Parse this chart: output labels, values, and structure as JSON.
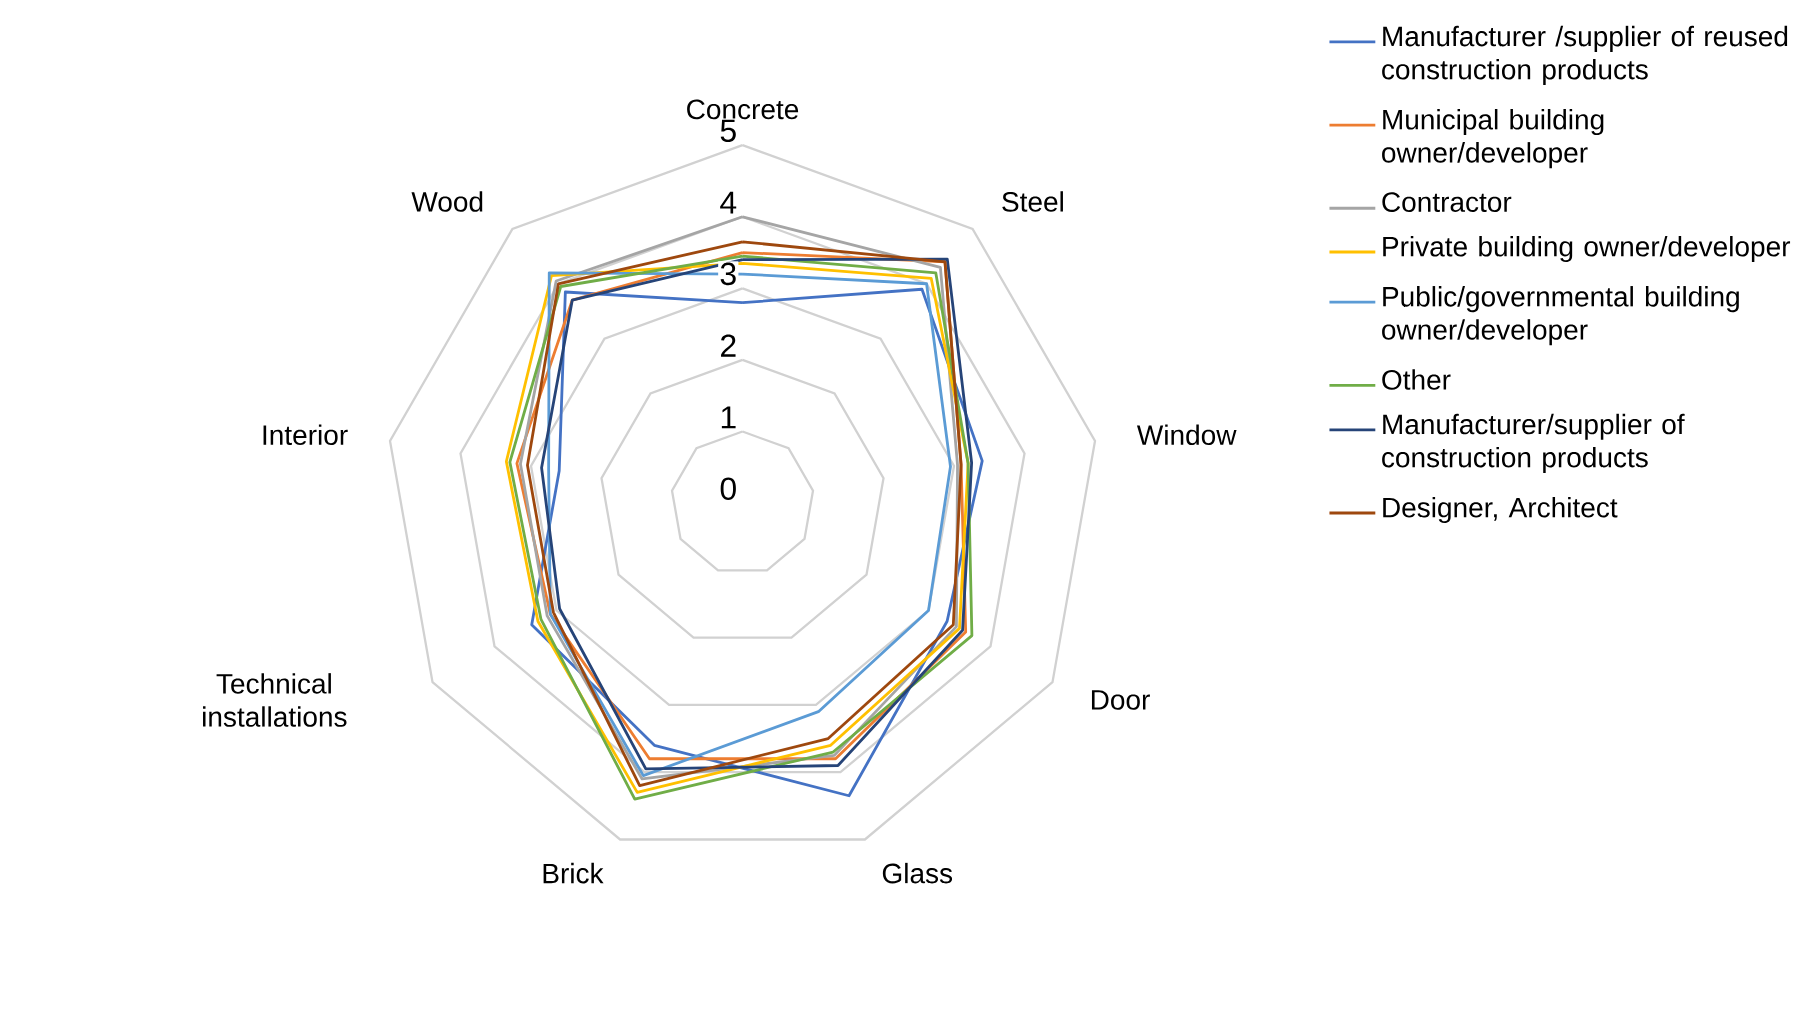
{
  "chart_data": {
    "type": "radar",
    "categories": [
      "Concrete",
      "Steel",
      "Window",
      "Door",
      "Glass",
      "Brick",
      "Technical installations",
      "Interior",
      "Wood"
    ],
    "ylim": [
      0,
      5
    ],
    "yticks": [
      0,
      1,
      2,
      3,
      4,
      5
    ],
    "grid": true,
    "legend": "right",
    "series": [
      {
        "name": "Manufacturer /supplier of reused construction products",
        "color": "#4472c4",
        "values": [
          2.8,
          3.9,
          3.4,
          3.3,
          4.35,
          3.6,
          3.4,
          2.6,
          3.85
        ]
      },
      {
        "name": "Municipal building owner/developer",
        "color": "#ed7d31",
        "values": [
          3.5,
          4.4,
          3.1,
          3.6,
          3.8,
          3.8,
          3.1,
          3.2,
          3.7
        ]
      },
      {
        "name": "Contractor",
        "color": "#a5a5a5",
        "values": [
          4.0,
          4.3,
          3.05,
          3.45,
          3.75,
          4.1,
          3.15,
          3.15,
          4.05
        ]
      },
      {
        "name": "Private building owner/developer",
        "color": "#ffc000",
        "values": [
          3.35,
          4.1,
          3.2,
          3.5,
          3.6,
          4.3,
          3.3,
          3.35,
          4.15
        ]
      },
      {
        "name": "Public/governmental building owner/developer",
        "color": "#5b9bd5",
        "values": [
          3.2,
          4.0,
          2.95,
          3.0,
          3.1,
          4.05,
          3.1,
          2.75,
          4.2
        ]
      },
      {
        "name": "Other",
        "color": "#70ad47",
        "values": [
          3.45,
          4.2,
          3.2,
          3.7,
          3.7,
          4.4,
          3.25,
          3.3,
          3.95
        ]
      },
      {
        "name": "Manufacturer/supplier of construction products",
        "color": "#264478",
        "values": [
          3.4,
          4.45,
          3.25,
          3.55,
          3.9,
          3.95,
          2.95,
          2.85,
          3.7
        ]
      },
      {
        "name": "Designer, Architect",
        "color": "#9e480e",
        "values": [
          3.65,
          4.4,
          3.1,
          3.4,
          3.5,
          4.2,
          3.05,
          3.05,
          4.0
        ]
      }
    ]
  }
}
